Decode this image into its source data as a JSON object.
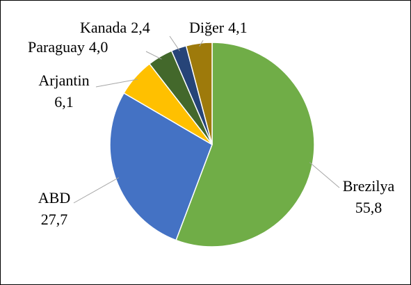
{
  "chart_data": {
    "type": "pie",
    "categories": [
      "Brezilya",
      "ABD",
      "Arjantin",
      "Paraguay",
      "Kanada",
      "Diğer"
    ],
    "values": [
      55.8,
      27.7,
      6.1,
      4.0,
      2.4,
      4.1
    ],
    "value_labels": [
      "55,8",
      "27,7",
      "6,1",
      "4,0",
      "2,4",
      "4,1"
    ],
    "colors": [
      "#70ad47",
      "#4472c4",
      "#ffc000",
      "#43682b",
      "#264478",
      "#9e7a0b"
    ]
  }
}
